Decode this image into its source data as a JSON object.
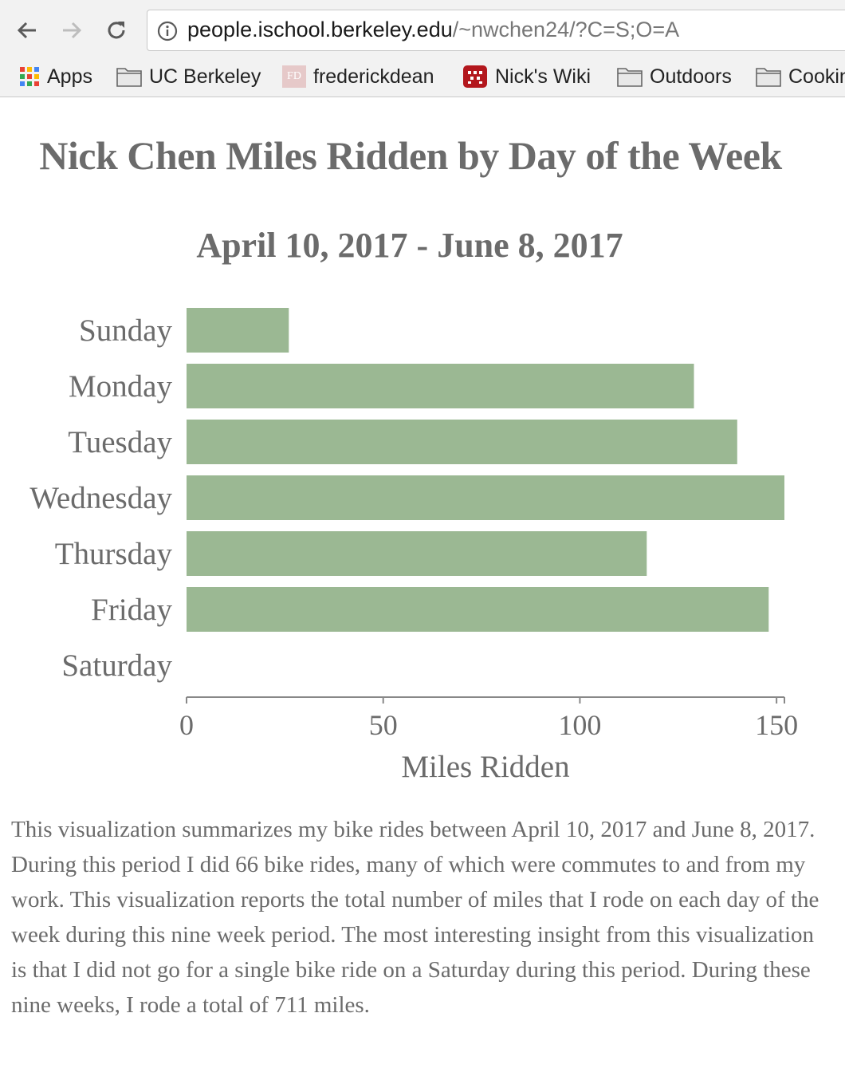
{
  "browser": {
    "url_host": "people.ischool.berkeley.edu",
    "url_path": "/~nwchen24/?C=S;O=A",
    "bookmarks": [
      {
        "label": "Apps",
        "icon": "apps-grid-icon"
      },
      {
        "label": "UC Berkeley",
        "icon": "folder-icon"
      },
      {
        "label": "frederickdean",
        "icon": "fd-logo-icon",
        "logo_text": "FD"
      },
      {
        "label": "Nick's Wiki",
        "icon": "wiki-icon"
      },
      {
        "label": "Outdoors",
        "icon": "folder-icon"
      },
      {
        "label": "Cookin",
        "icon": "folder-icon"
      }
    ]
  },
  "page": {
    "title": "Nick Chen Miles Ridden by Day of the Week",
    "description": "This visualization summarizes my bike rides between April 10, 2017 and June 8, 2017. During this period I did 66 bike rides, many of which were commutes to and from my work. This visualization reports the total number of miles that I rode on each day of the week during this nine week period. The most interesting insight from this visualization is that I did not go for a single bike ride on a Saturday during this period. During these nine weeks, I rode a total of 711 miles."
  },
  "chart_data": {
    "type": "bar",
    "orientation": "horizontal",
    "title": "April 10, 2017 - June 8, 2017",
    "xlabel": "Miles Ridden",
    "ylabel": "",
    "categories": [
      "Sunday",
      "Monday",
      "Tuesday",
      "Wednesday",
      "Thursday",
      "Friday",
      "Saturday"
    ],
    "values": [
      26,
      129,
      140,
      152,
      117,
      148,
      0
    ],
    "xlim": [
      0,
      152
    ],
    "xticks": [
      0,
      50,
      100,
      150
    ],
    "grid": false,
    "bar_color": "#9bb893",
    "text_color": "#6b6b6b",
    "axis_color": "#888888"
  }
}
